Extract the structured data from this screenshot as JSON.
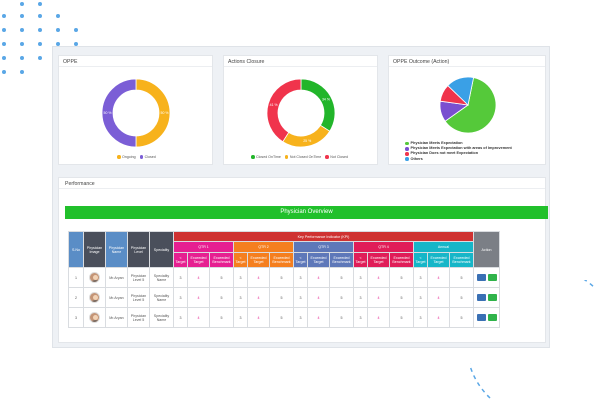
{
  "cards": {
    "oppe": {
      "title": "OPPE",
      "legend": [
        {
          "label": "Ongoing",
          "color": "#f7b21c"
        },
        {
          "label": "Closed",
          "color": "#7b5ed6"
        }
      ],
      "slices": [
        {
          "label": "Ongoing",
          "value": 50,
          "color": "#f7b21c"
        },
        {
          "label": "Closed",
          "value": 50,
          "color": "#7b5ed6"
        }
      ],
      "slice_labels": [
        "50 %",
        "50 %"
      ]
    },
    "actions": {
      "title": "Actions Closure",
      "legend": [
        {
          "label": "Closed OnTime",
          "color": "#22b52a"
        },
        {
          "label": "Not Closed OnTime",
          "color": "#f7b21c"
        },
        {
          "label": "Not Closed",
          "color": "#f0344c"
        }
      ],
      "slices": [
        {
          "label": "Closed OnTime",
          "value": 34,
          "color": "#22b52a"
        },
        {
          "label": "Not Closed OnTime",
          "value": 25,
          "color": "#f7b21c"
        },
        {
          "label": "Not Closed",
          "value": 41,
          "color": "#f0344c"
        }
      ],
      "slice_labels": [
        "34 %",
        "25 %",
        "41 %"
      ]
    },
    "outcome": {
      "title": "OPPE Outcome (Action)",
      "legend": [
        {
          "label": "Physician Meets Expectation",
          "color": "#55c93a"
        },
        {
          "label": "Physician Meets Expectation with areas of Improvement",
          "color": "#7a4fd0"
        },
        {
          "label": "Physician Does not meet Expectation",
          "color": "#f0344c"
        },
        {
          "label": "Others",
          "color": "#3aa0e6"
        }
      ],
      "slices": [
        {
          "label": "Physician Meets Expectation",
          "value": 62,
          "color": "#55c93a"
        },
        {
          "label": "Physician Meets Expectation with areas of Improvement",
          "value": 12,
          "color": "#7a4fd0"
        },
        {
          "label": "Physician Does not meet Expectation",
          "value": 10,
          "color": "#f0344c"
        },
        {
          "label": "Others",
          "value": 16,
          "color": "#3aa0e6"
        }
      ]
    }
  },
  "performance": {
    "title": "Performance",
    "overview_title": "Physician Overview",
    "headers": {
      "sno": "S.No",
      "image": "Physician Image",
      "name": "Physician Name",
      "level": "Physician Level",
      "speciality": "Speciality",
      "kpi": "Key Performance Indicator (KPI)",
      "action": "Action",
      "groups": [
        "QTR 1",
        "QTR 2",
        "QTR 3",
        "QTR 4",
        "Annual"
      ],
      "sub": [
        "< Target",
        "Exceeded Target",
        "Exceeded Benchmark"
      ]
    },
    "rows": [
      {
        "sno": "1",
        "name": "Mr.Aryan",
        "level": "Physician Level 5",
        "speciality": "Speciality Name",
        "values": [
          "3",
          "4",
          "5",
          "3",
          "4",
          "5",
          "3",
          "4",
          "5",
          "3",
          "4",
          "5",
          "3",
          "4",
          "5"
        ]
      },
      {
        "sno": "2",
        "name": "Mr.Aryan",
        "level": "Physician Level 5",
        "speciality": "Speciality Name",
        "values": [
          "3",
          "4",
          "5",
          "3",
          "4",
          "5",
          "3",
          "4",
          "5",
          "3",
          "4",
          "5",
          "3",
          "4",
          "5"
        ]
      },
      {
        "sno": "3",
        "name": "Mr.Aryan",
        "level": "Physician Level 5",
        "speciality": "Speciality Name",
        "values": [
          "3",
          "4",
          "5",
          "3",
          "4",
          "5",
          "3",
          "4",
          "5",
          "3",
          "4",
          "5",
          "3",
          "4",
          "5"
        ]
      }
    ]
  }
}
